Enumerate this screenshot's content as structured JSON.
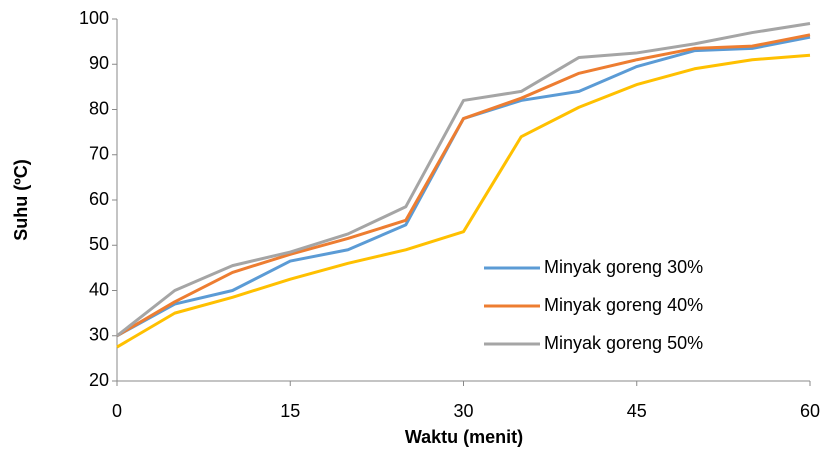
{
  "chart_data": {
    "type": "line",
    "x": [
      0,
      5,
      10,
      15,
      20,
      25,
      30,
      35,
      40,
      45,
      50,
      55,
      60
    ],
    "series": [
      {
        "name": "Minyak goreng 30%",
        "color": "#5B9BD5",
        "values": [
          30,
          37,
          40,
          46.5,
          49,
          54.5,
          78,
          82,
          84,
          89.5,
          93,
          93.5,
          96
        ]
      },
      {
        "name": "Minyak goreng 40%",
        "color": "#ED7D31",
        "values": [
          30,
          37.5,
          44,
          48,
          51.5,
          55.5,
          78,
          82.5,
          88,
          91,
          93.5,
          94,
          96.5
        ]
      },
      {
        "name": "Minyak goreng 50%",
        "color": "#A5A5A5",
        "values": [
          30,
          40,
          45.5,
          48.5,
          52.5,
          58.5,
          82,
          84,
          91.5,
          92.5,
          94.5,
          97,
          99
        ]
      },
      {
        "color": "#FFC000",
        "values": [
          27.5,
          35,
          38.5,
          42.5,
          46,
          49,
          53,
          74,
          80.5,
          85.5,
          89,
          91,
          92
        ]
      }
    ],
    "xlabel": "Waktu (menit)",
    "ylabel": "Suhu (ºC)",
    "xlim": [
      0,
      60
    ],
    "xticks": [
      0,
      15,
      30,
      45,
      60
    ],
    "ylim": [
      20,
      100
    ],
    "yticks": [
      20,
      30,
      40,
      50,
      60,
      70,
      80,
      90,
      100
    ],
    "grid": false,
    "legend": "lower right"
  }
}
